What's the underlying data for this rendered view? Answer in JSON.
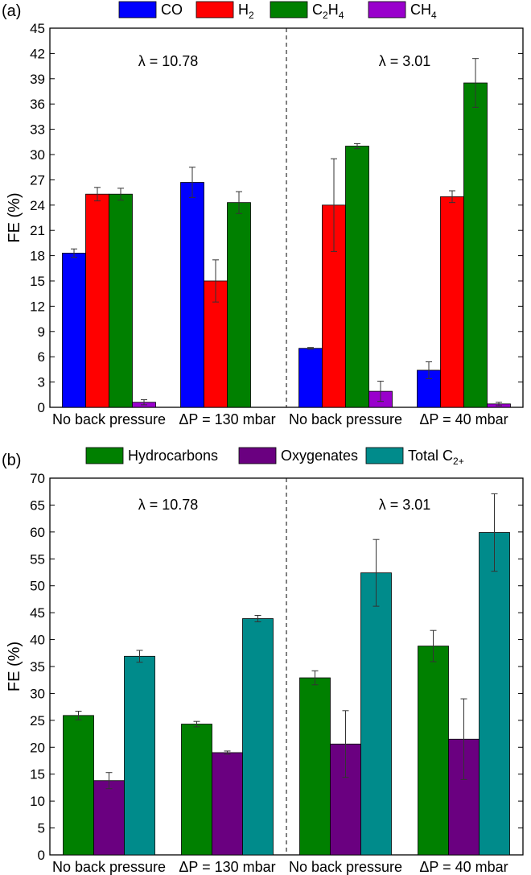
{
  "chart_data": [
    {
      "panel_label": "(a)",
      "type": "bar",
      "ylabel": "FE (%)",
      "ylim": [
        0,
        45
      ],
      "yticks": [
        "0",
        "3",
        "6",
        "9",
        "12",
        "15",
        "18",
        "21",
        "24",
        "27",
        "30",
        "33",
        "36",
        "39",
        "42",
        "45"
      ],
      "categories": [
        "No back pressure",
        "ΔP = 130 mbar",
        "No back pressure",
        "ΔP = 40 mbar"
      ],
      "group_annotations": [
        "λ = 10.78",
        "λ = 3.01"
      ],
      "legend": [
        {
          "base": "CO",
          "sub": ""
        },
        {
          "base": "H",
          "sub": "2"
        },
        {
          "base": "C",
          "sub": "2",
          "base2": "H",
          "sub2": "4"
        },
        {
          "base": "CH",
          "sub": "4"
        }
      ],
      "colors": [
        "#0000ff",
        "#ff0000",
        "#008000",
        "#9900cc"
      ],
      "series": [
        {
          "name": "CO",
          "values": [
            18.3,
            26.7,
            7.0,
            4.4
          ],
          "errors": [
            0.5,
            1.8,
            0.1,
            1.0
          ]
        },
        {
          "name": "H2",
          "values": [
            25.3,
            15.0,
            24.0,
            25.0
          ],
          "errors": [
            0.8,
            2.5,
            5.5,
            0.7
          ]
        },
        {
          "name": "C2H4",
          "values": [
            25.3,
            24.3,
            31.0,
            38.5
          ],
          "errors": [
            0.7,
            1.3,
            0.3,
            2.9
          ]
        },
        {
          "name": "CH4",
          "values": [
            0.6,
            0.0,
            1.9,
            0.4
          ],
          "errors": [
            0.3,
            0.0,
            1.2,
            0.2
          ]
        }
      ]
    },
    {
      "panel_label": "(b)",
      "type": "bar",
      "ylabel": "FE (%)",
      "ylim": [
        0,
        70
      ],
      "yticks": [
        "0",
        "5",
        "10",
        "15",
        "20",
        "25",
        "30",
        "35",
        "40",
        "45",
        "50",
        "55",
        "60",
        "65",
        "70"
      ],
      "categories": [
        "No back pressure",
        "ΔP = 130 mbar",
        "No back pressure",
        "ΔP = 40 mbar"
      ],
      "group_annotations": [
        "λ = 10.78",
        "λ = 3.01"
      ],
      "legend": [
        {
          "base": "Hydrocarbons",
          "sub": ""
        },
        {
          "base": "Oxygenates",
          "sub": ""
        },
        {
          "base": "Total C",
          "sub": "2+"
        }
      ],
      "colors": [
        "#008000",
        "#6a0080",
        "#008b8b"
      ],
      "series": [
        {
          "name": "Hydrocarbons",
          "values": [
            25.9,
            24.3,
            32.9,
            38.8
          ],
          "errors": [
            0.8,
            0.5,
            1.3,
            2.9
          ]
        },
        {
          "name": "Oxygenates",
          "values": [
            13.8,
            19.0,
            20.6,
            21.5
          ],
          "errors": [
            1.5,
            0.3,
            6.2,
            7.5
          ]
        },
        {
          "name": "Total C2+",
          "values": [
            36.9,
            43.9,
            52.4,
            59.9
          ],
          "errors": [
            1.1,
            0.6,
            6.2,
            7.2
          ]
        }
      ]
    }
  ]
}
